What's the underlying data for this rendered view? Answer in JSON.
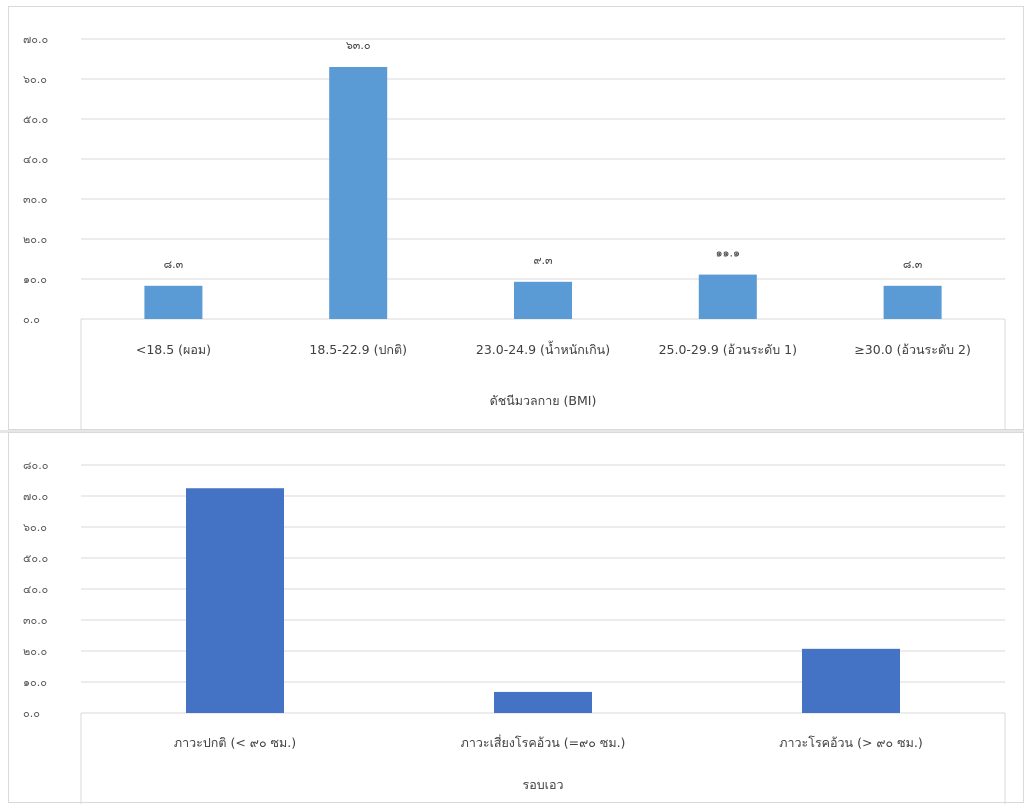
{
  "chart_data": [
    {
      "type": "bar",
      "categories": [
        "<18.5 (ผอม)",
        "18.5-22.9 (ปกติ)",
        "23.0-24.9 (น้ำหนักเกิน)",
        "25.0-29.9 (อ้วนระดับ 1)",
        "≥30.0  (อ้วนระดับ 2)"
      ],
      "values": [
        8.3,
        63.0,
        9.3,
        11.1,
        8.3
      ],
      "data_labels": [
        "๘.๓",
        "๖๓.๐",
        "๙.๓",
        "๑๑.๑",
        "๘.๓"
      ],
      "yticks": [
        "๐.๐",
        "๑๐.๐",
        "๒๐.๐",
        "๓๐.๐",
        "๔๐.๐",
        "๕๐.๐",
        "๖๐.๐",
        "๗๐.๐"
      ],
      "ylim": [
        0,
        70
      ],
      "xlabel": "ดัชนีมวลกาย (BMI)",
      "ylabel": "",
      "title": "",
      "grid": true,
      "bar_color": "#5b9bd5"
    },
    {
      "type": "bar",
      "categories": [
        "ภาวะปกติ   (< ๙๐ ซม.)",
        "ภาวะเสี่ยงโรคอ้วน (=๙๐ ซม.)",
        "ภาวะโรคอ้วน (> ๙๐ ซม.)"
      ],
      "values": [
        72.5,
        6.8,
        20.7
      ],
      "yticks": [
        "๐.๐",
        "๑๐.๐",
        "๒๐.๐",
        "๓๐.๐",
        "๔๐.๐",
        "๕๐.๐",
        "๖๐.๐",
        "๗๐.๐",
        "๘๐.๐"
      ],
      "ylim": [
        0,
        80
      ],
      "xlabel": "รอบเอว",
      "ylabel": "",
      "title": "",
      "grid": true,
      "bar_color": "#4472c4"
    }
  ]
}
